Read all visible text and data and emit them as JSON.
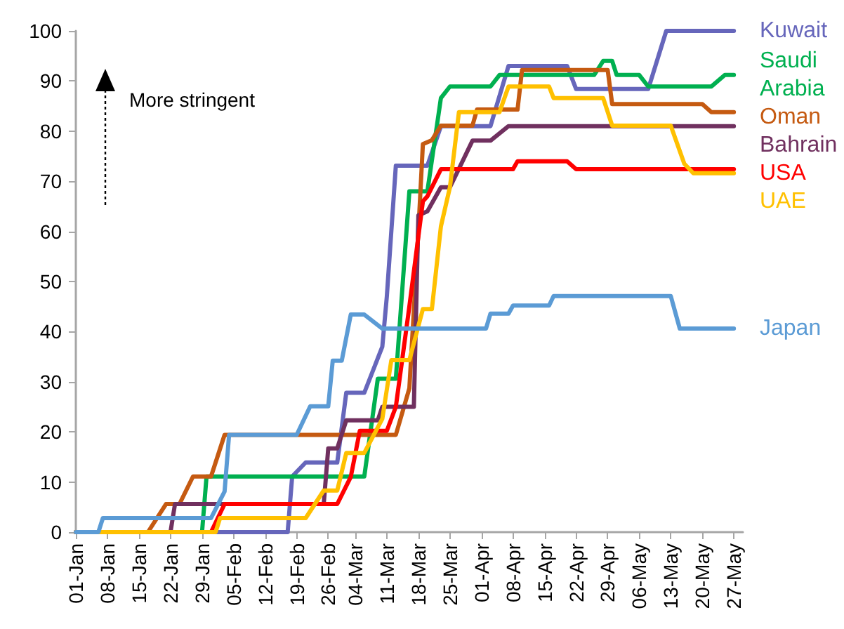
{
  "chart_data": {
    "type": "line",
    "annotations": [
      "More stringent"
    ],
    "xlim": [
      "--01-01",
      "--05-29"
    ],
    "xticks": [
      {
        "value": "--01-01",
        "label": "01-Jan"
      },
      {
        "value": "--01-08",
        "label": "08-Jan"
      },
      {
        "value": "--01-15",
        "label": "15-Jan"
      },
      {
        "value": "--01-22",
        "label": "22-Jan"
      },
      {
        "value": "--01-29",
        "label": "29-Jan"
      },
      {
        "value": "--02-05",
        "label": "05-Feb"
      },
      {
        "value": "--02-12",
        "label": "12-Feb"
      },
      {
        "value": "--02-19",
        "label": "19-Feb"
      },
      {
        "value": "--02-26",
        "label": "26-Feb"
      },
      {
        "value": "--03-04",
        "label": "04-Mar"
      },
      {
        "value": "--03-11",
        "label": "11-Mar"
      },
      {
        "value": "--03-18",
        "label": "18-Mar"
      },
      {
        "value": "--03-25",
        "label": "25-Mar"
      },
      {
        "value": "--04-01",
        "label": "01-Apr"
      },
      {
        "value": "--04-08",
        "label": "08-Apr"
      },
      {
        "value": "--04-15",
        "label": "15-Apr"
      },
      {
        "value": "--04-22",
        "label": "22-Apr"
      },
      {
        "value": "--04-29",
        "label": "29-Apr"
      },
      {
        "value": "--05-06",
        "label": "06-May"
      },
      {
        "value": "--05-13",
        "label": "13-May"
      },
      {
        "value": "--05-20",
        "label": "20-May"
      },
      {
        "value": "--05-27",
        "label": "27-May"
      }
    ],
    "ylim": [
      0,
      100
    ],
    "yticks": [
      0,
      10,
      20,
      30,
      40,
      50,
      60,
      70,
      80,
      90,
      100
    ],
    "grid": false,
    "legend": false,
    "marker": "none",
    "line_style": "solid",
    "series": [
      {
        "name": "Kuwait",
        "color": "#6666bb",
        "x": [
          "--01-01",
          "--02-17",
          "--02-18",
          "--02-21",
          "--02-28",
          "--03-02",
          "--03-06",
          "--03-10",
          "--03-11",
          "--03-13",
          "--03-20",
          "--03-23",
          "--04-03",
          "--04-07",
          "--04-20",
          "--04-22",
          "--05-08",
          "--05-12",
          "--05-27"
        ],
        "values": [
          0,
          0,
          11.1,
          13.9,
          13.9,
          27.8,
          27.8,
          37,
          47,
          73.1,
          73.1,
          81,
          81,
          93,
          93,
          88.4,
          88.4,
          100,
          100
        ]
      },
      {
        "name": "Saudi Arabia",
        "color": "#00b050",
        "x": [
          "--01-01",
          "--01-29",
          "--01-30",
          "--03-06",
          "--03-09",
          "--03-13",
          "--03-16",
          "--03-20",
          "--03-23",
          "--03-25",
          "--04-03",
          "--04-05",
          "--04-26",
          "--04-28",
          "--04-30",
          "--05-01",
          "--05-06",
          "--05-08",
          "--05-22",
          "--05-25",
          "--05-27"
        ],
        "values": [
          0,
          0,
          11.1,
          11.1,
          30.6,
          30.6,
          68,
          68,
          86.6,
          88.9,
          88.9,
          91.2,
          91.2,
          94,
          94,
          91.2,
          91.2,
          88.9,
          88.9,
          91.2,
          91.2
        ]
      },
      {
        "name": "Oman",
        "color": "#c55a11",
        "x": [
          "--01-01",
          "--01-17",
          "--01-21",
          "--01-24",
          "--01-27",
          "--01-31",
          "--02-03",
          "--03-13",
          "--03-16",
          "--03-18",
          "--03-19",
          "--03-21",
          "--03-23",
          "--03-30",
          "--03-31",
          "--04-09",
          "--04-10",
          "--04-29",
          "--04-30",
          "--05-20",
          "--05-22",
          "--05-27"
        ],
        "values": [
          0,
          0,
          5.6,
          5.6,
          11.1,
          11.1,
          19.4,
          19.4,
          28.7,
          60,
          77.4,
          78.2,
          81.1,
          81.1,
          84.3,
          84.3,
          92.2,
          92.2,
          85.4,
          85.4,
          83.8,
          83.8
        ]
      },
      {
        "name": "Bahrain",
        "color": "#70305f",
        "x": [
          "--01-01",
          "--01-22",
          "--01-23",
          "--02-25",
          "--02-26",
          "--02-28",
          "--03-02",
          "--03-09",
          "--03-10",
          "--03-17",
          "--03-18",
          "--03-20",
          "--03-23",
          "--03-25",
          "--03-27",
          "--03-30",
          "--04-03",
          "--04-07",
          "--05-27"
        ],
        "values": [
          0,
          0,
          5.6,
          5.6,
          16.7,
          16.7,
          22.3,
          22.3,
          25,
          25,
          63.2,
          64,
          68.8,
          68.8,
          72.5,
          78.1,
          78.1,
          81,
          81
        ]
      },
      {
        "name": "USA",
        "color": "#ff0000",
        "x": [
          "--01-01",
          "--01-31",
          "--02-03",
          "--02-28",
          "--03-03",
          "--03-05",
          "--03-11",
          "--03-13",
          "--03-16",
          "--03-19",
          "--03-20",
          "--03-23",
          "--04-08",
          "--04-09",
          "--04-20",
          "--04-22",
          "--05-27"
        ],
        "values": [
          0,
          0,
          5.6,
          5.6,
          11,
          20.2,
          20.2,
          25,
          45,
          66,
          67,
          72.4,
          72.4,
          74,
          74,
          72.4,
          72.4
        ]
      },
      {
        "name": "UAE",
        "color": "#ffc000",
        "x": [
          "--01-01",
          "--02-01",
          "--02-02",
          "--02-21",
          "--02-25",
          "--02-28",
          "--03-02",
          "--03-06",
          "--03-10",
          "--03-12",
          "--03-16",
          "--03-19",
          "--03-21",
          "--03-23",
          "--03-25",
          "--03-27",
          "--04-05",
          "--04-07",
          "--04-16",
          "--04-17",
          "--04-28",
          "--04-30",
          "--05-13",
          "--05-16",
          "--05-18",
          "--05-27"
        ],
        "values": [
          0,
          0,
          2.8,
          2.8,
          8.3,
          8.3,
          15.8,
          15.8,
          22.6,
          34.3,
          34.3,
          44.5,
          44.5,
          61,
          68.8,
          83.8,
          83.8,
          88.9,
          88.9,
          86.6,
          86.6,
          81.1,
          81.1,
          73.5,
          71.6,
          71.6
        ]
      },
      {
        "name": "Japan",
        "color": "#5b9bd5",
        "x": [
          "--01-01",
          "--01-06",
          "--01-07",
          "--01-31",
          "--02-03",
          "--02-04",
          "--02-19",
          "--02-22",
          "--02-26",
          "--02-27",
          "--03-01",
          "--03-03",
          "--03-06",
          "--03-10",
          "--04-02",
          "--04-03",
          "--04-07",
          "--04-08",
          "--04-16",
          "--04-17",
          "--05-13",
          "--05-15",
          "--05-27"
        ],
        "values": [
          0,
          0,
          2.8,
          2.8,
          8.1,
          19.4,
          19.4,
          25.1,
          25.1,
          34.2,
          34.2,
          43.4,
          43.4,
          40.6,
          40.6,
          43.6,
          43.6,
          45.2,
          45.2,
          47.1,
          47.1,
          40.6,
          40.6
        ]
      }
    ]
  }
}
